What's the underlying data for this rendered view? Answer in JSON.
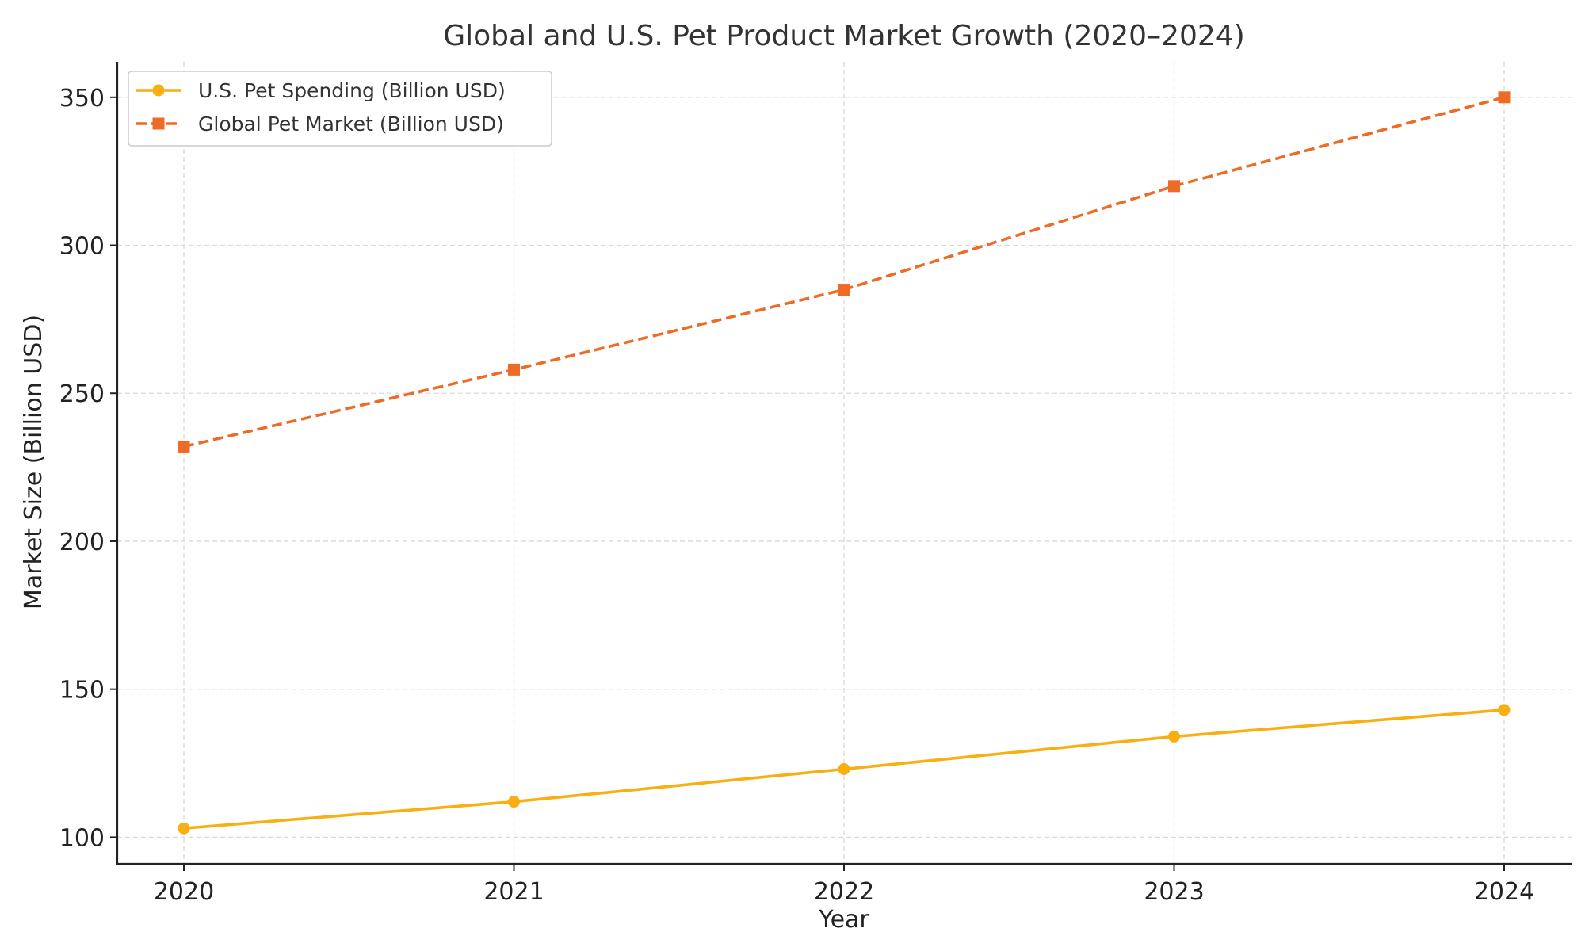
{
  "chart_data": {
    "type": "line",
    "title": "Global and U.S. Pet Product Market Growth (2020–2024)",
    "xlabel": "Year",
    "ylabel": "Market Size (Billion USD)",
    "x": [
      "2020",
      "2021",
      "2022",
      "2023",
      "2024"
    ],
    "ylim": [
      91,
      362
    ],
    "yticks": [
      100,
      150,
      200,
      250,
      300,
      350
    ],
    "grid": true,
    "legend_position": "top-left",
    "series": [
      {
        "name": "U.S. Pet Spending (Billion USD)",
        "values": [
          103,
          112,
          123,
          134,
          143
        ],
        "color": "#F9AE11",
        "marker": "circle",
        "line_style": "solid"
      },
      {
        "name": "Global Pet Market (Billion USD)",
        "values": [
          232,
          258,
          285,
          320,
          350
        ],
        "color": "#EE6B26",
        "marker": "square",
        "line_style": "dashed"
      }
    ]
  }
}
